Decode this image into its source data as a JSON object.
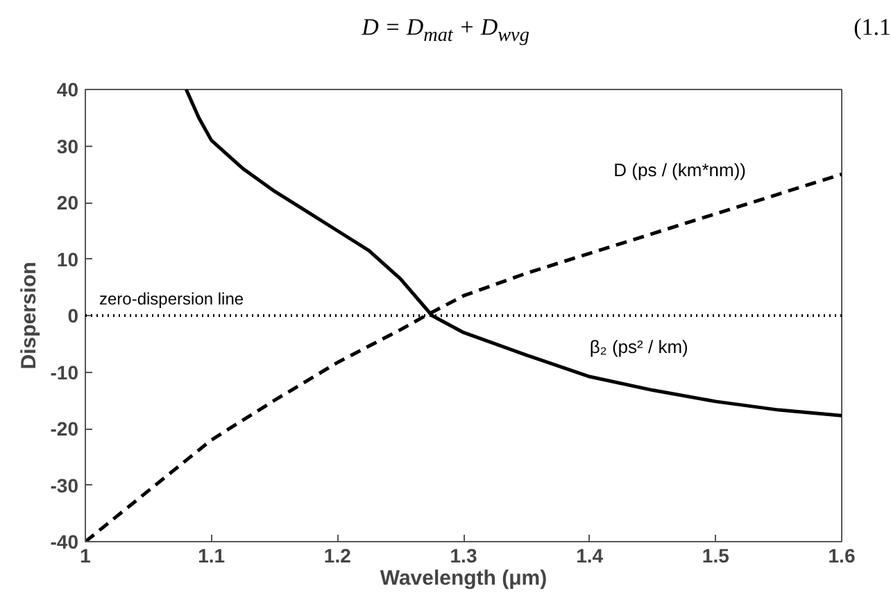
{
  "chart_data": {
    "type": "line",
    "xlabel": "Wavelength (μm)",
    "ylabel": "Dispersion",
    "xlim": [
      1,
      1.6
    ],
    "ylim": [
      -40,
      40
    ],
    "xticks": [
      1,
      1.1,
      1.2,
      1.3,
      1.4,
      1.5,
      1.6
    ],
    "yticks": [
      -40,
      -30,
      -20,
      -10,
      0,
      10,
      20,
      30,
      40
    ],
    "grid": false,
    "series": [
      {
        "name": "D  (ps / (km*nm))",
        "color": "#000000",
        "line_style": "dashed",
        "x": [
          1.0,
          1.05,
          1.1,
          1.15,
          1.2,
          1.25,
          1.27,
          1.3,
          1.35,
          1.4,
          1.45,
          1.5,
          1.55,
          1.6
        ],
        "values": [
          -40,
          -31,
          -22,
          -15,
          -8.3,
          -2.5,
          0,
          3.5,
          7.5,
          11,
          14.5,
          18,
          21.5,
          25
        ]
      },
      {
        "name": "β₂  (ps² / km)",
        "color": "#000000",
        "line_style": "solid",
        "x": [
          1.08,
          1.09,
          1.1,
          1.125,
          1.15,
          1.175,
          1.2,
          1.225,
          1.25,
          1.275,
          1.3,
          1.35,
          1.4,
          1.45,
          1.5,
          1.55,
          1.6
        ],
        "values": [
          40,
          35,
          31,
          26,
          22,
          18.5,
          15,
          11.5,
          6.5,
          0,
          -3,
          -7,
          -10.8,
          -13.2,
          -15.2,
          -16.7,
          -17.7
        ]
      }
    ],
    "ref_lines": [
      {
        "axis": "y",
        "value": 0,
        "label": "zero-dispersion line",
        "line_style": "dotted",
        "color": "#000000"
      }
    ],
    "annotations": [
      "D = D$_{mat}$ + D$_{wvg}$",
      "(1.1"
    ]
  }
}
